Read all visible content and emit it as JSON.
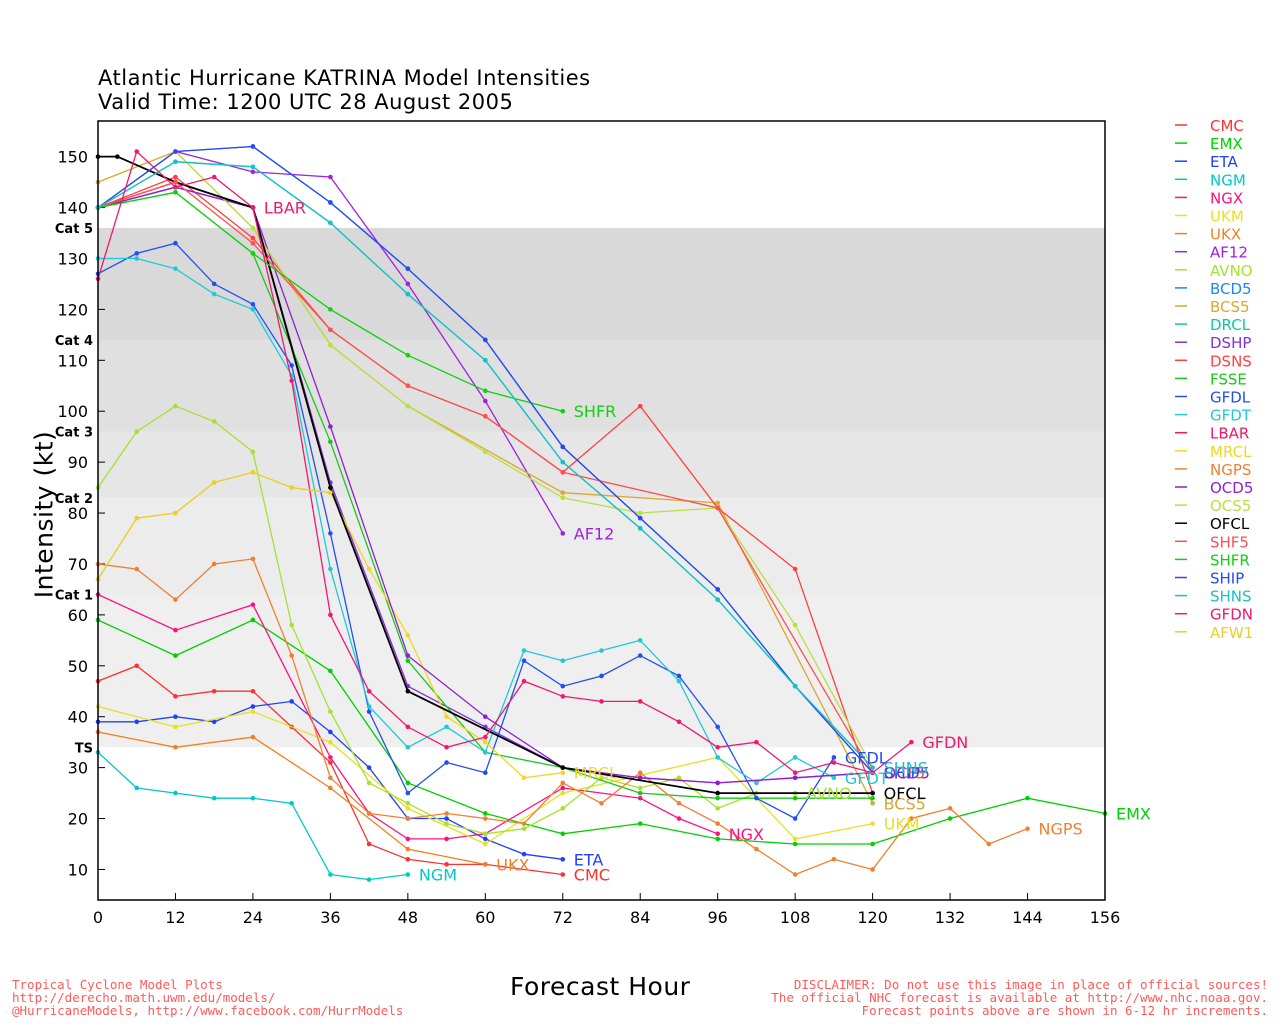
{
  "titles": {
    "line1": "Atlantic Hurricane KATRINA Model Intensities",
    "line2": "Valid Time: 1200 UTC 28 August 2005"
  },
  "footer": {
    "left1": "Tropical Cyclone Model Plots",
    "left2": "http://derecho.math.uwm.edu/models/",
    "left3": "@HurricaneModels, http://www.facebook.com/HurrModels",
    "right1": "DISCLAIMER: Do not use this image in place of official sources!",
    "right2": "The official NHC forecast is available at http://www.nhc.noaa.gov.",
    "right3": "Forecast points above are shown in 6-12 hr increments."
  },
  "chart_data": {
    "type": "line",
    "title": "Atlantic Hurricane KATRINA Model Intensities",
    "subtitle": "Valid Time: 1200 UTC 28 August 2005",
    "xlabel": "Forecast Hour",
    "ylabel": "Intensity (kt)",
    "xlim": [
      0,
      156
    ],
    "ylim": [
      4,
      157
    ],
    "xticks": [
      0,
      12,
      24,
      36,
      48,
      60,
      72,
      84,
      96,
      108,
      120,
      132,
      144,
      156
    ],
    "yticks": [
      10,
      20,
      30,
      40,
      50,
      60,
      70,
      80,
      90,
      100,
      110,
      120,
      130,
      140,
      150
    ],
    "categories": [
      {
        "label": "TS",
        "min": 34,
        "max": 64,
        "color": "#efefef"
      },
      {
        "label": "Cat 1",
        "min": 64,
        "max": 83,
        "color": "#ececec"
      },
      {
        "label": "Cat 2",
        "min": 83,
        "max": 96,
        "color": "#e6e6e6"
      },
      {
        "label": "Cat 3",
        "min": 96,
        "max": 114,
        "color": "#e0e0e0"
      },
      {
        "label": "Cat 4",
        "min": 114,
        "max": 136,
        "color": "#d9d9d9"
      },
      {
        "label": "Cat 5",
        "min": 136,
        "max": 157,
        "color": "#ffffff"
      }
    ],
    "series": [
      {
        "name": "CMC",
        "color": "#ff3030",
        "label": "CMC",
        "x": [
          0,
          6,
          12,
          18,
          24,
          30,
          36,
          42,
          48,
          54,
          60,
          72
        ],
        "y": [
          47,
          50,
          44,
          45,
          45,
          38,
          31,
          15,
          12,
          11,
          11,
          9
        ]
      },
      {
        "name": "EMX",
        "color": "#00d000",
        "label": "EMX",
        "x": [
          0,
          12,
          24,
          36,
          48,
          60,
          72,
          84,
          96,
          108,
          120,
          132,
          144,
          156
        ],
        "y": [
          59,
          52,
          59,
          49,
          27,
          21,
          17,
          19,
          16,
          15,
          15,
          20,
          24,
          21
        ]
      },
      {
        "name": "ETA",
        "color": "#2040ff",
        "label": "ETA",
        "x": [
          0,
          6,
          12,
          18,
          24,
          30,
          36,
          42,
          48,
          54,
          60,
          66,
          72
        ],
        "y": [
          39,
          39,
          40,
          39,
          42,
          43,
          37,
          30,
          20,
          20,
          16,
          13,
          12
        ]
      },
      {
        "name": "NGM",
        "color": "#00c8c8",
        "label": "NGM",
        "x": [
          0,
          6,
          12,
          18,
          24,
          30,
          36,
          42,
          48
        ],
        "y": [
          33,
          26,
          25,
          24,
          24,
          23,
          9,
          8,
          9
        ]
      },
      {
        "name": "NGX",
        "color": "#ff1080",
        "label": "NGX",
        "x": [
          0,
          12,
          24,
          36,
          42,
          48,
          54,
          60,
          72,
          84,
          90,
          96
        ],
        "y": [
          64,
          57,
          62,
          32,
          21,
          16,
          16,
          17,
          26,
          24,
          20,
          17
        ]
      },
      {
        "name": "UKM",
        "color": "#e8e020",
        "label": "UKM",
        "x": [
          0,
          12,
          24,
          36,
          48,
          60,
          72,
          96,
          108,
          120
        ],
        "y": [
          42,
          38,
          41,
          35,
          22,
          15,
          25,
          32,
          16,
          19
        ]
      },
      {
        "name": "UKX",
        "color": "#f08020",
        "label": "UKX",
        "x": [
          0,
          12,
          24,
          36,
          48,
          60
        ],
        "y": [
          37,
          34,
          36,
          26,
          14,
          11
        ]
      },
      {
        "name": "AF12",
        "color": "#a020e0",
        "label": "AF12",
        "x": [
          0,
          12,
          24,
          36,
          48,
          60,
          72
        ],
        "y": [
          140,
          151,
          147,
          146,
          125,
          102,
          76
        ]
      },
      {
        "name": "AVNO",
        "color": "#a8e030",
        "label": "AVNO",
        "x": [
          0,
          6,
          12,
          18,
          24,
          30,
          36,
          42,
          48,
          54,
          60,
          66,
          72,
          78,
          84,
          90,
          96,
          102,
          108
        ],
        "y": [
          85,
          96,
          101,
          98,
          92,
          58,
          41,
          27,
          23,
          19,
          17,
          18,
          22,
          28,
          26,
          28,
          22,
          25,
          25
        ]
      },
      {
        "name": "BCD5",
        "color": "#1888f8",
        "label": "",
        "x": [
          0,
          12,
          24,
          36,
          48,
          60,
          72,
          84,
          96,
          108,
          120
        ],
        "y": [
          140,
          151,
          152,
          141,
          128,
          114,
          93,
          79,
          65,
          46,
          30
        ]
      },
      {
        "name": "BCS5",
        "color": "#d8a830",
        "label": "BCS5",
        "x": [
          0,
          12,
          24,
          36,
          48,
          72,
          96,
          120
        ],
        "y": [
          145,
          151,
          136,
          113,
          101,
          84,
          82,
          23
        ]
      },
      {
        "name": "DRCL",
        "color": "#10c8a0",
        "label": "",
        "x": [
          0,
          12,
          24,
          36,
          48,
          60,
          72,
          84,
          96,
          108,
          120
        ],
        "y": [
          140,
          149,
          148,
          137,
          123,
          110,
          90,
          77,
          63,
          46,
          29
        ]
      },
      {
        "name": "DSHP",
        "color": "#8030e0",
        "label": "",
        "x": [
          0,
          12,
          24,
          36,
          48,
          60,
          72,
          84,
          96,
          108,
          120
        ],
        "y": [
          140,
          144,
          140,
          86,
          46,
          38,
          30,
          28,
          27,
          28,
          29
        ]
      },
      {
        "name": "DSNS",
        "color": "#ff4040",
        "label": "",
        "x": [
          0,
          12,
          24,
          36,
          48,
          60,
          72,
          84,
          96,
          108,
          120
        ],
        "y": [
          140,
          146,
          134,
          116,
          105,
          99,
          88,
          101,
          81,
          69,
          25
        ]
      },
      {
        "name": "FSSE",
        "color": "#18c818",
        "label": "",
        "x": [
          0,
          12,
          24,
          36,
          48,
          60,
          72,
          84,
          96,
          108,
          120
        ],
        "y": [
          140,
          143,
          131,
          94,
          51,
          33,
          30,
          25,
          24,
          24,
          24
        ]
      },
      {
        "name": "GFDL",
        "color": "#2050f0",
        "label": "GFDL",
        "x": [
          0,
          6,
          12,
          18,
          24,
          30,
          36,
          42,
          48,
          54,
          60,
          66,
          72,
          78,
          84,
          90,
          96,
          102,
          108,
          114
        ],
        "y": [
          127,
          131,
          133,
          125,
          121,
          109,
          76,
          41,
          25,
          31,
          29,
          51,
          46,
          48,
          52,
          48,
          38,
          24,
          20,
          32
        ]
      },
      {
        "name": "GFDT",
        "color": "#20c8d8",
        "label": "GFDT",
        "x": [
          0,
          6,
          12,
          18,
          24,
          30,
          36,
          42,
          48,
          54,
          60,
          66,
          72,
          78,
          84,
          90,
          96,
          102,
          108,
          114
        ],
        "y": [
          130,
          130,
          128,
          123,
          120,
          107,
          69,
          42,
          34,
          38,
          33,
          53,
          51,
          53,
          55,
          47,
          32,
          27,
          32,
          28
        ]
      },
      {
        "name": "LBAR",
        "color": "#f01868",
        "label": "LBAR",
        "x": [
          0,
          12,
          24
        ],
        "y": [
          140,
          145,
          140
        ]
      },
      {
        "name": "MRCL",
        "color": "#f0d820",
        "label": "MRCL",
        "x": [
          0,
          6,
          12,
          18,
          24,
          30,
          36,
          42,
          48,
          54,
          60,
          66,
          72
        ],
        "y": [
          67,
          79,
          80,
          86,
          88,
          85,
          84,
          69,
          56,
          40,
          35,
          28,
          29
        ]
      },
      {
        "name": "NGPS",
        "color": "#f08030",
        "label": "NGPS",
        "x": [
          0,
          6,
          12,
          18,
          24,
          30,
          36,
          42,
          48,
          54,
          60,
          66,
          72,
          78,
          84,
          90,
          96,
          102,
          108,
          114,
          120,
          126,
          132,
          138,
          144
        ],
        "y": [
          70,
          69,
          63,
          70,
          71,
          52,
          28,
          21,
          20,
          21,
          20,
          19,
          27,
          23,
          29,
          23,
          19,
          14,
          9,
          12,
          10,
          20,
          22,
          15,
          18
        ]
      },
      {
        "name": "OCD5",
        "color": "#9020d0",
        "label": "OCD5",
        "x": [
          0,
          12,
          24,
          36,
          48,
          60,
          72,
          84,
          96,
          108,
          120
        ],
        "y": [
          140,
          144,
          140,
          97,
          52,
          40,
          30,
          28,
          27,
          28,
          29
        ]
      },
      {
        "name": "OCS5",
        "color": "#b8e040",
        "label": "",
        "x": [
          0,
          12,
          24,
          36,
          48,
          60,
          72,
          84,
          96,
          108,
          120
        ],
        "y": [
          140,
          151,
          136,
          113,
          101,
          92,
          83,
          80,
          81,
          58,
          30
        ]
      },
      {
        "name": "OFCL",
        "color": "#000000",
        "label": "OFCL",
        "x": [
          0,
          3,
          12,
          24,
          36,
          48,
          72,
          96,
          120
        ],
        "y": [
          150,
          150,
          145,
          140,
          85,
          45,
          30,
          25,
          25
        ]
      },
      {
        "name": "SHF5",
        "color": "#ff5050",
        "label": "SHF5",
        "x": [
          0,
          12,
          24,
          36,
          48,
          60,
          72,
          96,
          120
        ],
        "y": [
          140,
          145,
          133,
          116,
          105,
          99,
          88,
          81,
          29
        ]
      },
      {
        "name": "SHFR",
        "color": "#10d010",
        "label": "SHFR",
        "x": [
          0,
          12,
          24,
          36,
          48,
          60,
          72
        ],
        "y": [
          140,
          143,
          131,
          120,
          111,
          104,
          100
        ]
      },
      {
        "name": "SHIP",
        "color": "#2848f0",
        "label": "SHIP",
        "x": [
          0,
          12,
          24,
          36,
          48,
          60,
          72,
          84,
          96,
          108,
          120
        ],
        "y": [
          140,
          151,
          152,
          141,
          128,
          114,
          93,
          79,
          65,
          46,
          29
        ]
      },
      {
        "name": "SHNS",
        "color": "#18c0c8",
        "label": "SHNS",
        "x": [
          0,
          12,
          24,
          36,
          48,
          60,
          72,
          84,
          96,
          108,
          120
        ],
        "y": [
          140,
          149,
          148,
          137,
          123,
          110,
          90,
          77,
          63,
          46,
          30
        ]
      },
      {
        "name": "GFDN",
        "color": "#f01870",
        "label": "GFDN",
        "x": [
          0,
          6,
          12,
          18,
          24,
          30,
          36,
          42,
          48,
          54,
          60,
          66,
          72,
          78,
          84,
          90,
          96,
          102,
          108,
          114,
          120,
          126
        ],
        "y": [
          126,
          151,
          144,
          146,
          140,
          106,
          60,
          45,
          38,
          34,
          36,
          47,
          44,
          43,
          43,
          39,
          34,
          35,
          29,
          31,
          29,
          35
        ]
      },
      {
        "name": "AFW1",
        "color": "#e8d030",
        "label": "",
        "x": [
          0,
          6,
          12,
          18,
          24,
          30,
          36
        ],
        "y": [
          67,
          79,
          80,
          86,
          88,
          85,
          84
        ]
      }
    ]
  }
}
